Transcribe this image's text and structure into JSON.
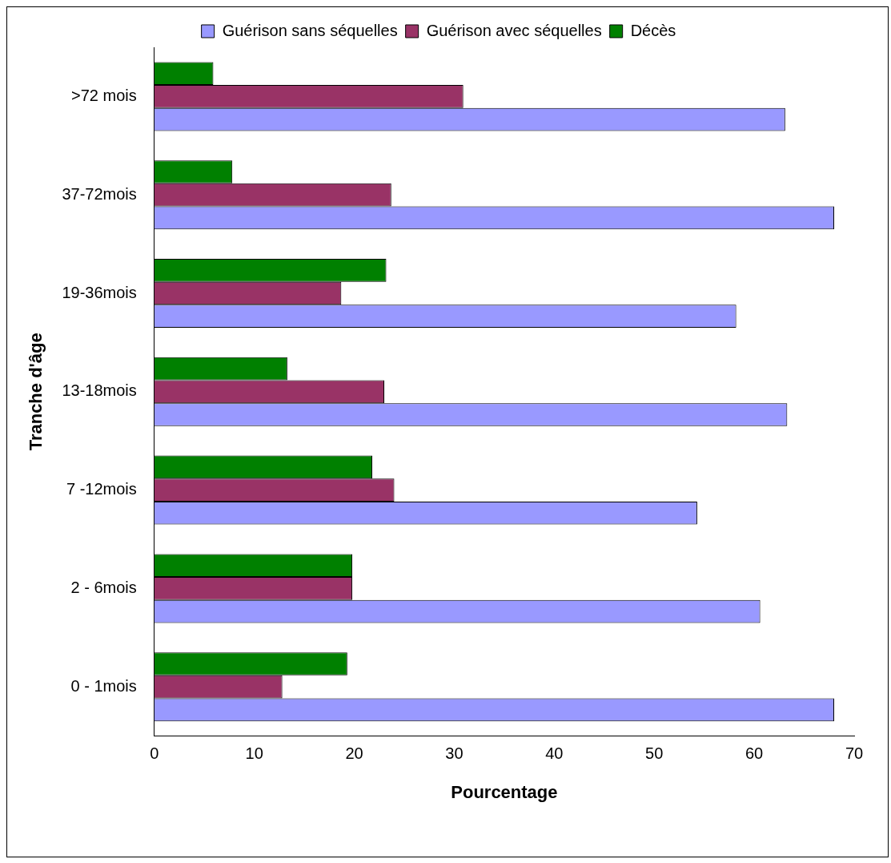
{
  "chart_data": {
    "type": "bar",
    "orientation": "horizontal",
    "xlabel": "Pourcentage",
    "ylabel": "Tranche d'âge",
    "categories": [
      ">72 mois",
      "37-72mois",
      "19-36mois",
      "13-18mois",
      "7 -12mois",
      "2 - 6mois",
      "0 - 1mois"
    ],
    "series": [
      {
        "name": "Guérison sans séquelles",
        "color": "#9999ff",
        "values": [
          63.1,
          68.0,
          58.2,
          63.3,
          54.3,
          60.6,
          68.0
        ]
      },
      {
        "name": "Guérison avec séquelles",
        "color": "#993366",
        "values": [
          30.9,
          23.7,
          18.7,
          23.0,
          24.0,
          19.8,
          12.8
        ]
      },
      {
        "name": "Décès",
        "color": "#008000",
        "values": [
          5.9,
          7.8,
          23.2,
          13.3,
          21.8,
          19.8,
          19.3
        ]
      }
    ],
    "xlim": [
      0,
      70
    ],
    "xticks": [
      0,
      10,
      20,
      30,
      40,
      50,
      60,
      70
    ],
    "grid": false,
    "legend": "top"
  }
}
